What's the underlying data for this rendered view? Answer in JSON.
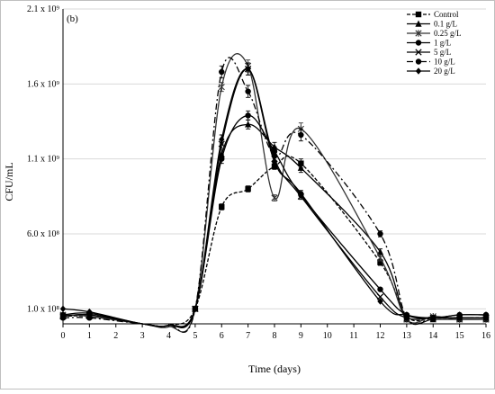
{
  "chart_data": {
    "type": "line",
    "panel_label": "(b)",
    "xlabel": "Time (days)",
    "ylabel": "CFU/mL",
    "x": [
      0,
      1,
      3,
      4,
      5,
      6,
      7,
      8,
      9,
      12,
      13,
      14,
      15,
      16
    ],
    "x_ticks": [
      "0",
      "1",
      "2",
      "3",
      "4",
      "5",
      "6",
      "7",
      "8",
      "9",
      "10",
      "11",
      "12",
      "13",
      "14",
      "15",
      "16"
    ],
    "xlim": [
      0,
      16
    ],
    "y_ticks": [
      {
        "value": 100000000,
        "label": "1.0 x 10⁸"
      },
      {
        "value": 600000000,
        "label": "6.0 x 10⁸"
      },
      {
        "value": 1100000000,
        "label": "1.1 x 10⁹"
      },
      {
        "value": 1600000000,
        "label": "1.6 x 10⁹"
      },
      {
        "value": 2100000000,
        "label": "2.1 x 10⁹"
      }
    ],
    "ylim": [
      0,
      2100000000
    ],
    "grid": true,
    "legend_position": "top-right",
    "series": [
      {
        "name": "Control",
        "color": "#000000",
        "dash": "4,2",
        "marker": "square",
        "values": [
          50000000.0,
          50000000.0,
          0,
          -10000000.0,
          100000000.0,
          780000000.0,
          900000000.0,
          1050000000.0,
          1070000000.0,
          410000000.0,
          50000000.0,
          40000000.0,
          40000000.0,
          40000000.0
        ],
        "errors": [
          0,
          0,
          0,
          0,
          0,
          20000000.0,
          20000000.0,
          20000000.0,
          30000000.0,
          20000000.0,
          0,
          0,
          0,
          0
        ]
      },
      {
        "name": "0.1 g/L",
        "color": "#000000",
        "dash": "",
        "marker": "triangle",
        "values": [
          50000000.0,
          60000000.0,
          0,
          -10000000.0,
          100000000.0,
          1130000000.0,
          1330000000.0,
          1180000000.0,
          1040000000.0,
          480000000.0,
          30000000.0,
          30000000.0,
          30000000.0,
          30000000.0
        ],
        "errors": [
          0,
          0,
          0,
          0,
          0,
          30000000.0,
          30000000.0,
          30000000.0,
          30000000.0,
          20000000.0,
          0,
          0,
          0,
          0
        ]
      },
      {
        "name": "0.25 g/L",
        "color": "#333333",
        "dash": "",
        "marker": "asterisk",
        "values": [
          60000000.0,
          50000000.0,
          0,
          -20000000.0,
          100000000.0,
          1580000000.0,
          1720000000.0,
          840000000.0,
          1300000000.0,
          440000000.0,
          30000000.0,
          50000000.0,
          30000000.0,
          30000000.0
        ],
        "errors": [
          0,
          0,
          0,
          0,
          0,
          30000000.0,
          40000000.0,
          20000000.0,
          40000000.0,
          20000000.0,
          0,
          0,
          0,
          0
        ]
      },
      {
        "name": "1 g/L",
        "color": "#000000",
        "dash": "",
        "marker": "circle",
        "values": [
          60000000.0,
          70000000.0,
          0,
          -10000000.0,
          100000000.0,
          1100000000.0,
          1390000000.0,
          1150000000.0,
          860000000.0,
          230000000.0,
          60000000.0,
          40000000.0,
          60000000.0,
          60000000.0
        ],
        "errors": [
          0,
          0,
          0,
          0,
          0,
          30000000.0,
          30000000.0,
          30000000.0,
          20000000.0,
          0,
          0,
          0,
          0,
          0
        ]
      },
      {
        "name": "5 g/L",
        "color": "#000000",
        "dash": "",
        "marker": "x",
        "values": [
          50000000.0,
          60000000.0,
          0,
          -10000000.0,
          100000000.0,
          1200000000.0,
          1700000000.0,
          1100000000.0,
          850000000.0,
          180000000.0,
          40000000.0,
          40000000.0,
          40000000.0,
          40000000.0
        ],
        "errors": [
          0,
          0,
          0,
          0,
          0,
          30000000.0,
          40000000.0,
          30000000.0,
          20000000.0,
          0,
          0,
          0,
          0,
          0
        ]
      },
      {
        "name": "10 g/L",
        "color": "#000000",
        "dash": "7,3,2,3",
        "marker": "circle",
        "values": [
          40000000.0,
          40000000.0,
          0,
          -10000000.0,
          100000000.0,
          1680000000.0,
          1550000000.0,
          1120000000.0,
          1260000000.0,
          600000000.0,
          40000000.0,
          40000000.0,
          40000000.0,
          40000000.0
        ],
        "errors": [
          0,
          0,
          0,
          0,
          0,
          40000000.0,
          40000000.0,
          30000000.0,
          40000000.0,
          20000000.0,
          0,
          0,
          0,
          0
        ]
      },
      {
        "name": "20 g/L",
        "color": "#000000",
        "dash": "",
        "marker": "diamond",
        "values": [
          100000000.0,
          80000000.0,
          0,
          -10000000.0,
          100000000.0,
          1230000000.0,
          1700000000.0,
          1080000000.0,
          870000000.0,
          150000000.0,
          60000000.0,
          40000000.0,
          60000000.0,
          60000000.0
        ],
        "errors": [
          0,
          0,
          0,
          0,
          0,
          30000000.0,
          40000000.0,
          30000000.0,
          20000000.0,
          0,
          0,
          0,
          0,
          0
        ]
      }
    ]
  }
}
